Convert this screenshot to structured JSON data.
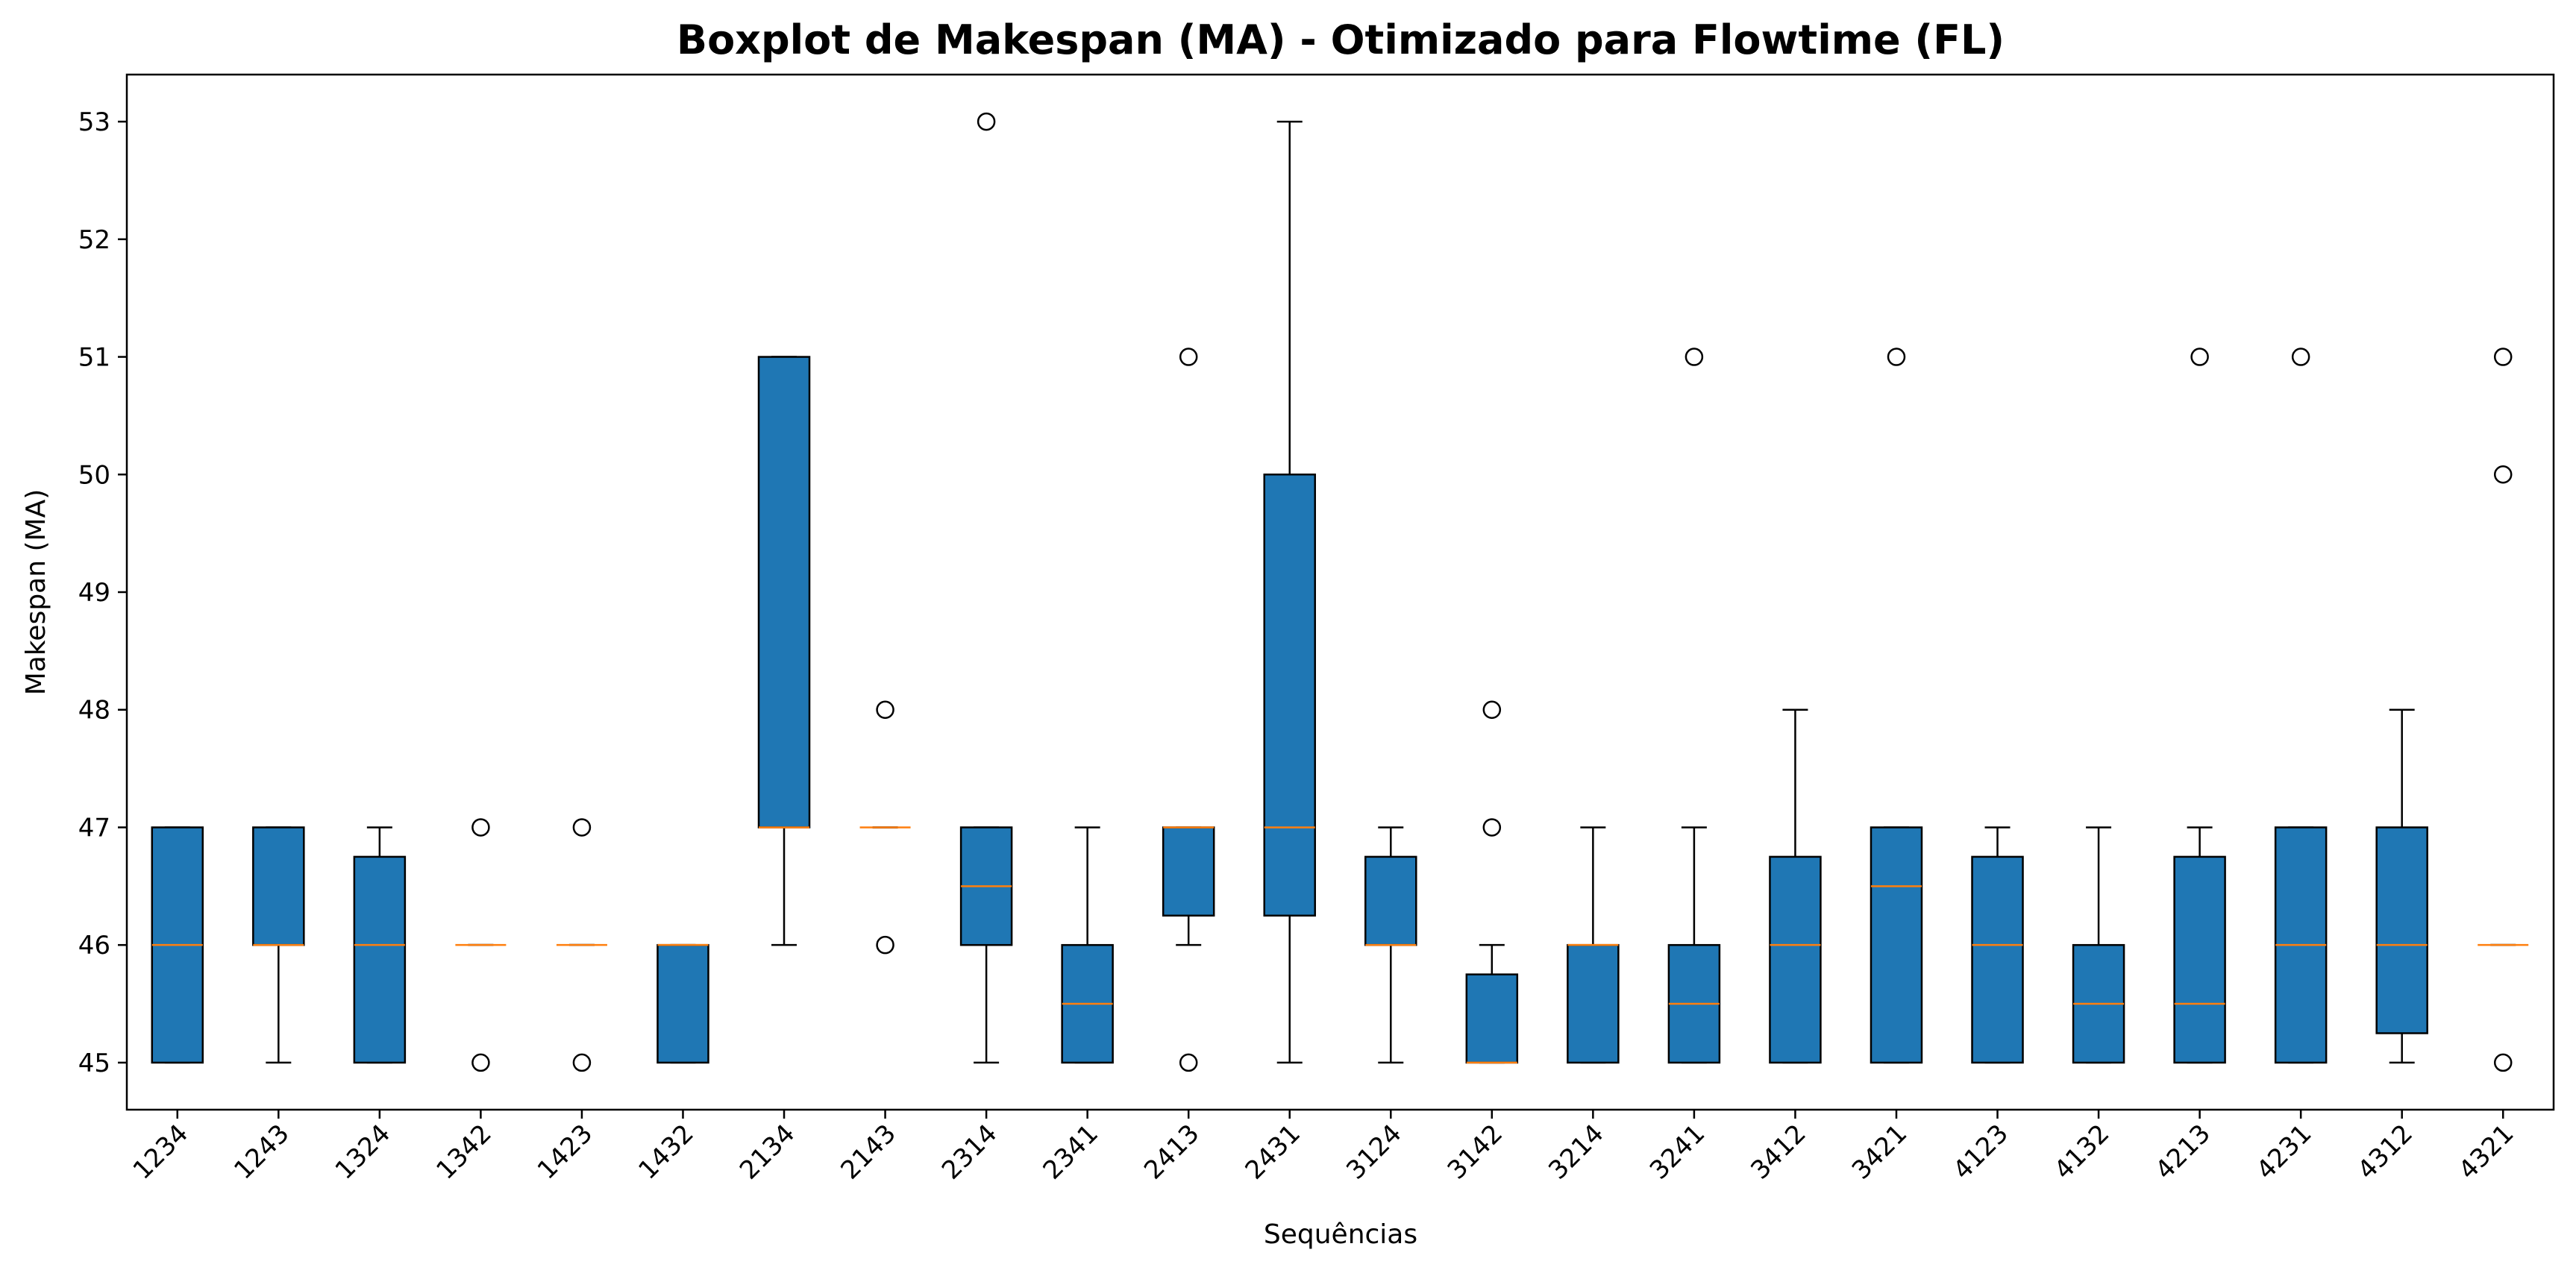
{
  "chart_data": {
    "type": "boxplot",
    "title": "Boxplot de Makespan (MA) - Otimizado para Flowtime (FL)",
    "xlabel": "Sequências",
    "ylabel": "Makespan (MA)",
    "ylim": [
      44.6,
      53.4
    ],
    "yticks": [
      45,
      46,
      47,
      48,
      49,
      50,
      51,
      52,
      53
    ],
    "grid": false,
    "colors": {
      "box": "#1f77b4",
      "median": "#ff7f0e",
      "outline": "#000000"
    },
    "categories": [
      "1234",
      "1243",
      "1324",
      "1342",
      "1423",
      "1432",
      "2134",
      "2143",
      "2314",
      "2341",
      "2413",
      "2431",
      "3124",
      "3142",
      "3214",
      "3241",
      "3412",
      "3421",
      "4123",
      "4132",
      "4213",
      "4231",
      "4312",
      "4321"
    ],
    "boxes": [
      {
        "label": "1234",
        "whislo": 45,
        "q1": 45,
        "med": 46,
        "q3": 47,
        "whishi": 47,
        "fliers": []
      },
      {
        "label": "1243",
        "whislo": 45,
        "q1": 46,
        "med": 46,
        "q3": 47,
        "whishi": 47,
        "fliers": []
      },
      {
        "label": "1324",
        "whislo": 45,
        "q1": 45,
        "med": 46,
        "q3": 46.75,
        "whishi": 47,
        "fliers": []
      },
      {
        "label": "1342",
        "whislo": 46,
        "q1": 46,
        "med": 46,
        "q3": 46,
        "whishi": 46,
        "fliers": [
          45,
          47
        ]
      },
      {
        "label": "1423",
        "whislo": 46,
        "q1": 46,
        "med": 46,
        "q3": 46,
        "whishi": 46,
        "fliers": [
          45,
          47
        ]
      },
      {
        "label": "1432",
        "whislo": 45,
        "q1": 45,
        "med": 46,
        "q3": 46,
        "whishi": 46,
        "fliers": []
      },
      {
        "label": "2134",
        "whislo": 46,
        "q1": 47,
        "med": 47,
        "q3": 51,
        "whishi": 51,
        "fliers": []
      },
      {
        "label": "2143",
        "whislo": 47,
        "q1": 47,
        "med": 47,
        "q3": 47,
        "whishi": 47,
        "fliers": [
          46,
          48
        ]
      },
      {
        "label": "2314",
        "whislo": 45,
        "q1": 46,
        "med": 46.5,
        "q3": 47,
        "whishi": 47,
        "fliers": [
          53
        ]
      },
      {
        "label": "2341",
        "whislo": 45,
        "q1": 45,
        "med": 45.5,
        "q3": 46,
        "whishi": 47,
        "fliers": []
      },
      {
        "label": "2413",
        "whislo": 46,
        "q1": 46.25,
        "med": 47,
        "q3": 47,
        "whishi": 47,
        "fliers": [
          45,
          51
        ]
      },
      {
        "label": "2431",
        "whislo": 45,
        "q1": 46.25,
        "med": 47,
        "q3": 50,
        "whishi": 53,
        "fliers": []
      },
      {
        "label": "3124",
        "whislo": 45,
        "q1": 46,
        "med": 46,
        "q3": 46.75,
        "whishi": 47,
        "fliers": []
      },
      {
        "label": "3142",
        "whislo": 45,
        "q1": 45,
        "med": 45,
        "q3": 45.75,
        "whishi": 46,
        "fliers": [
          47,
          48
        ]
      },
      {
        "label": "3214",
        "whislo": 45,
        "q1": 45,
        "med": 46,
        "q3": 46,
        "whishi": 47,
        "fliers": []
      },
      {
        "label": "3241",
        "whislo": 45,
        "q1": 45,
        "med": 45.5,
        "q3": 46,
        "whishi": 47,
        "fliers": [
          51
        ]
      },
      {
        "label": "3412",
        "whislo": 45,
        "q1": 45,
        "med": 46,
        "q3": 46.75,
        "whishi": 48,
        "fliers": []
      },
      {
        "label": "3421",
        "whislo": 45,
        "q1": 45,
        "med": 46.5,
        "q3": 47,
        "whishi": 47,
        "fliers": [
          51
        ]
      },
      {
        "label": "4123",
        "whislo": 45,
        "q1": 45,
        "med": 46,
        "q3": 46.75,
        "whishi": 47,
        "fliers": []
      },
      {
        "label": "4132",
        "whislo": 45,
        "q1": 45,
        "med": 45.5,
        "q3": 46,
        "whishi": 47,
        "fliers": []
      },
      {
        "label": "4213",
        "whislo": 45,
        "q1": 45,
        "med": 45.5,
        "q3": 46.75,
        "whishi": 47,
        "fliers": [
          51
        ]
      },
      {
        "label": "4231",
        "whislo": 45,
        "q1": 45,
        "med": 46,
        "q3": 47,
        "whishi": 47,
        "fliers": [
          51
        ]
      },
      {
        "label": "4312",
        "whislo": 45,
        "q1": 45.25,
        "med": 46,
        "q3": 47,
        "whishi": 48,
        "fliers": []
      },
      {
        "label": "4321",
        "whislo": 46,
        "q1": 46,
        "med": 46,
        "q3": 46,
        "whishi": 46,
        "fliers": [
          45,
          50,
          51
        ]
      }
    ]
  }
}
